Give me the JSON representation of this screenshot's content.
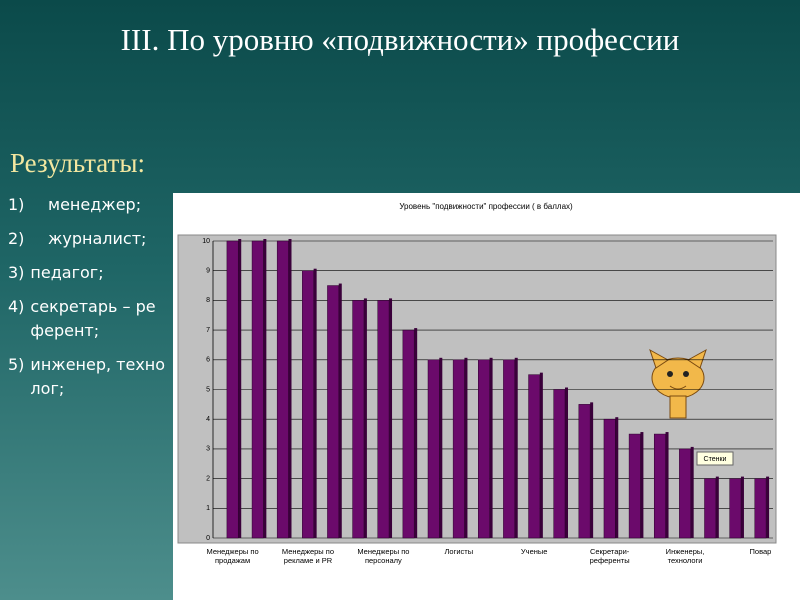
{
  "slide_title": "III. По уровню «подвижности» профессии",
  "results_heading": "Результаты:",
  "items": [
    {
      "num": "1)",
      "text": "менеджер;"
    },
    {
      "num": "2)",
      "text": "журналист;"
    },
    {
      "num": "3)",
      "text": "педагог;"
    },
    {
      "num": "4)",
      "text": "секретарь – референт;"
    },
    {
      "num": "5)",
      "text": "инженер, технолог;"
    }
  ],
  "chart_data": {
    "type": "bar",
    "title": "Уровень \"подвижности\" профессии ( в баллах)",
    "categories": [
      "Менеджеры по продажам",
      null,
      null,
      "Менеджеры по рекламе и PR",
      null,
      null,
      "Менеджеры по персоналу",
      null,
      null,
      "Логисты",
      null,
      null,
      "Ученые",
      null,
      null,
      "Секретари-референты",
      null,
      null,
      "Инженеры, технологи",
      null,
      null,
      "Повар"
    ],
    "values": [
      10,
      10,
      10,
      9,
      8.5,
      8,
      8,
      7,
      6,
      6,
      6,
      6,
      5.5,
      5,
      4.5,
      4,
      3.5,
      3.5,
      3,
      2,
      2,
      2
    ],
    "color": "#6b0a6b",
    "ylim": [
      0,
      10
    ],
    "yticks": [
      0,
      1,
      2,
      3,
      4,
      5,
      6,
      7,
      8,
      9,
      10
    ],
    "grid": true,
    "annotation": "Стенки"
  }
}
